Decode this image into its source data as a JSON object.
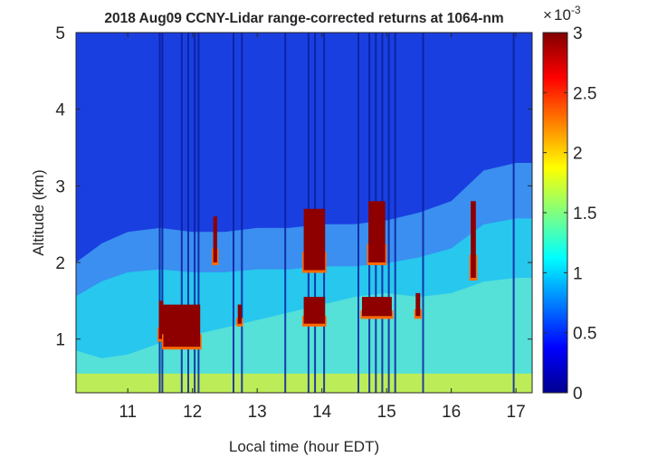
{
  "chart_data": {
    "type": "heatmap",
    "title": "2018 Aug09 CCNY-Lidar range-corrected returns at 1064-nm",
    "xlabel": "Local time (hour EDT)",
    "ylabel": "Altitude (km)",
    "xlim": [
      10.2,
      17.25
    ],
    "ylim": [
      0.3,
      5
    ],
    "xticks": [
      11,
      12,
      13,
      14,
      15,
      16,
      17
    ],
    "yticks": [
      1,
      2,
      3,
      4,
      5
    ],
    "colorbar": {
      "colormap": "jet",
      "clim": [
        0,
        3
      ],
      "ticks": [
        0,
        0.5,
        1,
        1.5,
        2,
        2.5,
        3
      ],
      "exponent_base": "10",
      "exponent": "-3"
    },
    "grid": false,
    "surface_layer_top_km": [
      [
        10.2,
        0.85
      ],
      [
        10.6,
        0.75
      ],
      [
        11.0,
        0.8
      ],
      [
        11.5,
        0.95
      ],
      [
        12.0,
        1.05
      ],
      [
        12.5,
        1.15
      ],
      [
        13.0,
        1.25
      ],
      [
        13.5,
        1.35
      ],
      [
        14.0,
        1.45
      ],
      [
        14.5,
        1.55
      ],
      [
        15.0,
        1.6
      ],
      [
        15.5,
        1.55
      ],
      [
        16.0,
        1.6
      ],
      [
        16.5,
        1.75
      ],
      [
        17.0,
        1.8
      ],
      [
        17.25,
        1.8
      ]
    ],
    "aerosol_layer_top_km": [
      [
        10.2,
        2.0
      ],
      [
        10.6,
        2.25
      ],
      [
        11.0,
        2.4
      ],
      [
        11.5,
        2.45
      ],
      [
        12.0,
        2.4
      ],
      [
        12.5,
        2.4
      ],
      [
        13.0,
        2.45
      ],
      [
        13.5,
        2.45
      ],
      [
        14.0,
        2.5
      ],
      [
        14.5,
        2.5
      ],
      [
        15.0,
        2.55
      ],
      [
        15.5,
        2.65
      ],
      [
        16.0,
        2.8
      ],
      [
        16.5,
        3.2
      ],
      [
        17.0,
        3.3
      ],
      [
        17.25,
        3.3
      ]
    ],
    "cloud_regions": [
      {
        "t0": 11.48,
        "t1": 11.55,
        "z0": 1.0,
        "z1": 1.5
      },
      {
        "t0": 11.55,
        "t1": 12.12,
        "z0": 0.9,
        "z1": 1.45
      },
      {
        "t0": 12.32,
        "t1": 12.38,
        "z0": 2.0,
        "z1": 2.6
      },
      {
        "t0": 12.7,
        "t1": 12.76,
        "z0": 1.2,
        "z1": 1.45
      },
      {
        "t0": 13.72,
        "t1": 14.05,
        "z0": 1.2,
        "z1": 1.55
      },
      {
        "t0": 13.72,
        "t1": 14.05,
        "z0": 1.9,
        "z1": 2.7
      },
      {
        "t0": 14.62,
        "t1": 15.08,
        "z0": 1.3,
        "z1": 1.55
      },
      {
        "t0": 14.72,
        "t1": 14.98,
        "z0": 2.0,
        "z1": 2.8
      },
      {
        "t0": 15.45,
        "t1": 15.52,
        "z0": 1.3,
        "z1": 1.6
      },
      {
        "t0": 16.3,
        "t1": 16.38,
        "z0": 1.8,
        "z1": 2.8
      }
    ],
    "data_gaps_hour": [
      11.48,
      11.52,
      11.82,
      11.92,
      12.02,
      12.08,
      12.62,
      12.75,
      13.42,
      13.78,
      13.88,
      14.02,
      14.55,
      14.72,
      14.82,
      14.92,
      15.02,
      15.12,
      15.55,
      16.95
    ]
  }
}
